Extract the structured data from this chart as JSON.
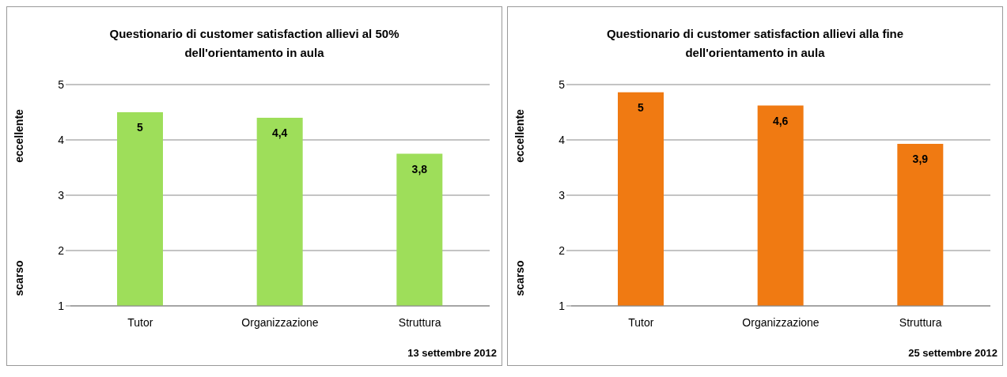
{
  "chart_data": [
    {
      "type": "bar",
      "title": "Questionario di customer satisfaction  allievi al 50%\ndell'orientamento in aula",
      "categories": [
        "Tutor",
        "Organizzazione",
        "Struttura"
      ],
      "values": [
        4.5,
        4.4,
        3.75
      ],
      "value_labels": [
        "5",
        "4,4",
        "3,8"
      ],
      "color": "#9ede5a",
      "ylim": [
        1,
        5
      ],
      "yticks": [
        1,
        2,
        3,
        4,
        5
      ],
      "grid": "y",
      "annotations": [
        "eccellente",
        "scarso",
        "13 settembre 2012"
      ]
    },
    {
      "type": "bar",
      "title": "Questionario di customer satisfaction allievi alla fine\ndell'orientamento in aula",
      "categories": [
        "Tutor",
        "Organizzazione",
        "Struttura"
      ],
      "values": [
        4.86,
        4.62,
        3.93
      ],
      "value_labels": [
        "5",
        "4,6",
        "3,9"
      ],
      "color": "#f07a12",
      "ylim": [
        1,
        5
      ],
      "yticks": [
        1,
        2,
        3,
        4,
        5
      ],
      "grid": "y",
      "annotations": [
        "eccellente",
        "scarso",
        "25 settembre 2012"
      ]
    }
  ]
}
